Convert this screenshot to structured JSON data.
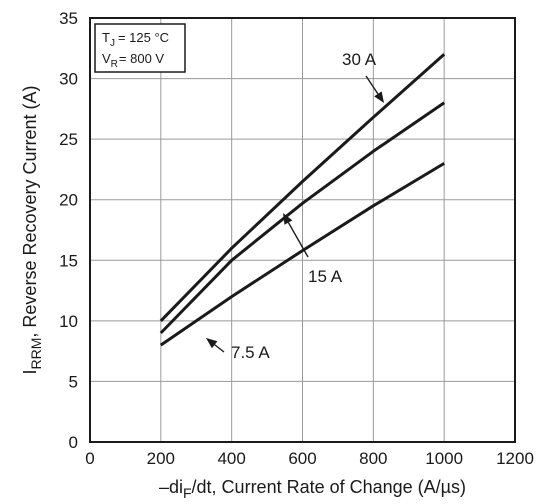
{
  "chart_data": {
    "type": "line",
    "xlabel": {
      "prefix": "–di",
      "sub": "F",
      "suffix": "/dt, Current Rate of Change (A/µs)"
    },
    "ylabel": {
      "prefix": "I",
      "sub": "RRM",
      "suffix": ", Reverse Recovery Current (A)"
    },
    "xlim": [
      0,
      1200
    ],
    "ylim": [
      0,
      35
    ],
    "xticks": [
      0,
      200,
      400,
      600,
      800,
      1000,
      1200
    ],
    "yticks": [
      0,
      5,
      10,
      15,
      20,
      25,
      30,
      35
    ],
    "grid": true,
    "conditions": {
      "tj_prefix": "T",
      "tj_sub": "J",
      "tj_value": "= 125 °C",
      "vr_prefix": "V",
      "vr_sub": "R",
      "vr_value": "= 800 V"
    },
    "series": [
      {
        "name": "30 A",
        "x": [
          200,
          400,
          600,
          800,
          1000
        ],
        "y": [
          10,
          16,
          21.5,
          26.8,
          32
        ]
      },
      {
        "name": "15 A",
        "x": [
          200,
          400,
          600,
          800,
          1000
        ],
        "y": [
          9,
          15,
          19.7,
          24,
          28
        ]
      },
      {
        "name": "7.5 A",
        "x": [
          200,
          400,
          600,
          800,
          1000
        ],
        "y": [
          8,
          12,
          15.8,
          19.5,
          23
        ]
      }
    ],
    "annotations": [
      {
        "text": "30 A",
        "series": "30 A"
      },
      {
        "text": "15 A",
        "series": "15 A"
      },
      {
        "text": "7.5 A",
        "series": "7.5 A"
      }
    ]
  }
}
